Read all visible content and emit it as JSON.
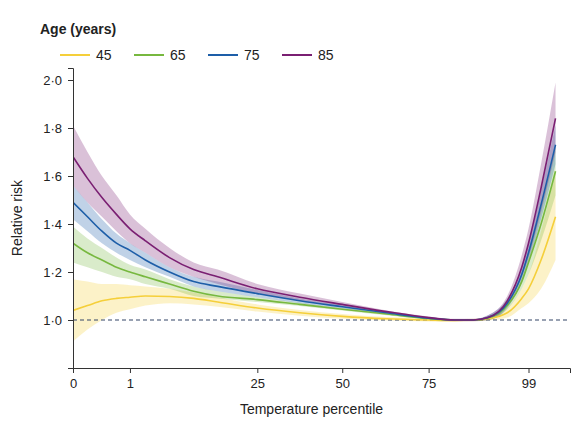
{
  "chart_data": {
    "type": "line",
    "x_label": "Temperature percentile",
    "y_label": "Relative risk",
    "legend": "top-left",
    "legend_title": "Age (years)",
    "reference_line": 1.0,
    "xlim": [
      0,
      1.03
    ],
    "ylim": [
      0.8,
      2.05
    ],
    "xticks": [
      {
        "value": 0,
        "label": "0"
      },
      {
        "value": 0.118,
        "label": "1"
      },
      {
        "value": 0.382,
        "label": "25"
      },
      {
        "value": 0.558,
        "label": "50"
      },
      {
        "value": 0.737,
        "label": "75"
      },
      {
        "value": 0.944,
        "label": "99"
      }
    ],
    "yticks": [
      {
        "value": 1.0,
        "label": "1·0"
      },
      {
        "value": 1.2,
        "label": "1·2"
      },
      {
        "value": 1.4,
        "label": "1·4"
      },
      {
        "value": 1.6,
        "label": "1·6"
      },
      {
        "value": 1.8,
        "label": "1·8"
      },
      {
        "value": 2.0,
        "label": "2·0"
      }
    ],
    "x": [
      0,
      0.03,
      0.06,
      0.09,
      0.118,
      0.15,
      0.2,
      0.25,
      0.3,
      0.382,
      0.47,
      0.558,
      0.65,
      0.737,
      0.79,
      0.83,
      0.86,
      0.9,
      0.93,
      0.944,
      0.97,
      1.0
    ],
    "series": [
      {
        "name": "45",
        "color": "#f5cf3a",
        "values": [
          1.04,
          1.06,
          1.08,
          1.09,
          1.095,
          1.1,
          1.098,
          1.09,
          1.075,
          1.05,
          1.03,
          1.015,
          1.005,
          1.0,
          0.998,
          1.0,
          1.005,
          1.03,
          1.09,
          1.13,
          1.25,
          1.43
        ],
        "lower": [
          0.91,
          0.96,
          1.0,
          1.03,
          1.045,
          1.06,
          1.07,
          1.065,
          1.055,
          1.035,
          1.018,
          1.005,
          0.998,
          0.994,
          0.993,
          0.995,
          0.998,
          1.01,
          1.05,
          1.07,
          1.13,
          1.25
        ],
        "upper": [
          1.17,
          1.16,
          1.15,
          1.15,
          1.145,
          1.14,
          1.13,
          1.115,
          1.095,
          1.065,
          1.042,
          1.025,
          1.012,
          1.006,
          1.003,
          1.005,
          1.012,
          1.05,
          1.13,
          1.19,
          1.37,
          1.62
        ]
      },
      {
        "name": "65",
        "color": "#77b83f",
        "values": [
          1.32,
          1.28,
          1.25,
          1.22,
          1.2,
          1.18,
          1.15,
          1.12,
          1.1,
          1.085,
          1.065,
          1.045,
          1.025,
          1.006,
          1.0,
          1.0,
          1.008,
          1.06,
          1.16,
          1.24,
          1.4,
          1.62
        ],
        "lower": [
          1.24,
          1.22,
          1.2,
          1.18,
          1.17,
          1.15,
          1.13,
          1.1,
          1.09,
          1.075,
          1.058,
          1.04,
          1.02,
          1.003,
          0.997,
          0.997,
          1.0,
          1.045,
          1.13,
          1.19,
          1.33,
          1.52
        ],
        "upper": [
          1.39,
          1.34,
          1.3,
          1.26,
          1.23,
          1.21,
          1.17,
          1.14,
          1.12,
          1.095,
          1.072,
          1.05,
          1.03,
          1.01,
          1.003,
          1.003,
          1.016,
          1.075,
          1.19,
          1.29,
          1.47,
          1.72
        ]
      },
      {
        "name": "75",
        "color": "#1d5ea8",
        "values": [
          1.49,
          1.43,
          1.37,
          1.32,
          1.29,
          1.25,
          1.2,
          1.16,
          1.14,
          1.11,
          1.08,
          1.055,
          1.03,
          1.008,
          1.0,
          1.0,
          1.01,
          1.07,
          1.19,
          1.28,
          1.48,
          1.73
        ],
        "lower": [
          1.42,
          1.37,
          1.32,
          1.28,
          1.25,
          1.22,
          1.18,
          1.14,
          1.12,
          1.095,
          1.07,
          1.048,
          1.025,
          1.004,
          0.997,
          0.997,
          1.0,
          1.05,
          1.16,
          1.24,
          1.42,
          1.65
        ],
        "upper": [
          1.56,
          1.49,
          1.42,
          1.36,
          1.32,
          1.28,
          1.22,
          1.18,
          1.16,
          1.125,
          1.09,
          1.062,
          1.035,
          1.012,
          1.003,
          1.003,
          1.02,
          1.09,
          1.22,
          1.32,
          1.54,
          1.81
        ]
      },
      {
        "name": "85",
        "color": "#7a1f72",
        "values": [
          1.68,
          1.59,
          1.51,
          1.44,
          1.38,
          1.33,
          1.26,
          1.21,
          1.18,
          1.13,
          1.095,
          1.065,
          1.035,
          1.01,
          1.0,
          1.0,
          1.01,
          1.08,
          1.22,
          1.32,
          1.55,
          1.84
        ],
        "lower": [
          1.56,
          1.49,
          1.43,
          1.37,
          1.32,
          1.28,
          1.22,
          1.18,
          1.15,
          1.11,
          1.08,
          1.055,
          1.03,
          1.005,
          0.995,
          0.995,
          1.0,
          1.06,
          1.18,
          1.26,
          1.45,
          1.7
        ],
        "upper": [
          1.81,
          1.7,
          1.6,
          1.52,
          1.44,
          1.38,
          1.3,
          1.24,
          1.21,
          1.15,
          1.11,
          1.075,
          1.04,
          1.015,
          1.005,
          1.005,
          1.02,
          1.1,
          1.27,
          1.38,
          1.65,
          1.99
        ]
      }
    ]
  }
}
